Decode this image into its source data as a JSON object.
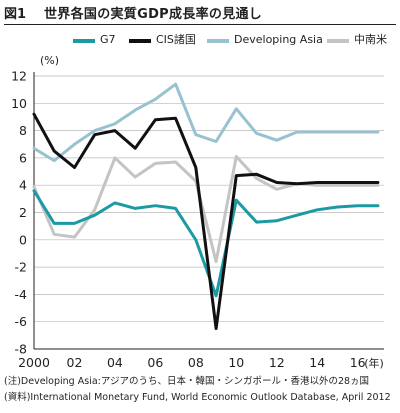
{
  "header": {
    "fig_no": "図1",
    "title": "世界各国の実質GDP成長率の見通し"
  },
  "notes": [
    "(注)Developing Asia:アジアのうち、日本・韓国・シンガポール・香港以外の28ヵ国",
    "(資料)International Monetary Fund, World Economic Outlook Database, April 2012"
  ],
  "chart_data": {
    "type": "line",
    "ylabel": "(%)",
    "xlabel_unit": "(年)",
    "ylim": [
      -8,
      12
    ],
    "y_ticks": [
      -8,
      -6,
      -4,
      -2,
      0,
      2,
      4,
      6,
      8,
      10,
      12
    ],
    "xlim": [
      2000,
      2017.3
    ],
    "x_ticks": [
      {
        "value": 2000,
        "label": "2000"
      },
      {
        "value": 2002,
        "label": "02"
      },
      {
        "value": 2004,
        "label": "04"
      },
      {
        "value": 2006,
        "label": "06"
      },
      {
        "value": 2008,
        "label": "08"
      },
      {
        "value": 2010,
        "label": "10"
      },
      {
        "value": 2012,
        "label": "12"
      },
      {
        "value": 2014,
        "label": "14"
      },
      {
        "value": 2016,
        "label": "16"
      }
    ],
    "grid": "horizontal",
    "legend_position": "top",
    "x": [
      2000,
      2001,
      2002,
      2003,
      2004,
      2005,
      2006,
      2007,
      2008,
      2009,
      2010,
      2011,
      2012,
      2013,
      2014,
      2015,
      2016,
      2017
    ],
    "series": [
      {
        "name": "G7",
        "color": "#1c9aa3",
        "values": [
          3.6,
          1.2,
          1.2,
          1.8,
          2.7,
          2.3,
          2.5,
          2.3,
          0.0,
          -4.1,
          2.9,
          1.3,
          1.4,
          1.8,
          2.2,
          2.4,
          2.5,
          2.5
        ]
      },
      {
        "name": "CIS諸国",
        "color": "#111111",
        "values": [
          9.2,
          6.5,
          5.3,
          7.7,
          8.0,
          6.7,
          8.8,
          8.9,
          5.3,
          -6.5,
          4.7,
          4.8,
          4.2,
          4.1,
          4.2,
          4.2,
          4.2,
          4.2
        ]
      },
      {
        "name": "Developing Asia",
        "color": "#98c2d0",
        "values": [
          6.7,
          5.8,
          7.0,
          8.0,
          8.5,
          9.5,
          10.3,
          11.4,
          7.7,
          7.2,
          9.6,
          7.8,
          7.3,
          7.9,
          7.9,
          7.9,
          7.9,
          7.9
        ]
      },
      {
        "name": "中南米",
        "color": "#c4c4c4",
        "values": [
          3.9,
          0.4,
          0.2,
          2.2,
          6.0,
          4.6,
          5.6,
          5.7,
          4.3,
          -1.6,
          6.1,
          4.5,
          3.7,
          4.1,
          4.0,
          4.0,
          4.0,
          4.0
        ]
      }
    ]
  }
}
